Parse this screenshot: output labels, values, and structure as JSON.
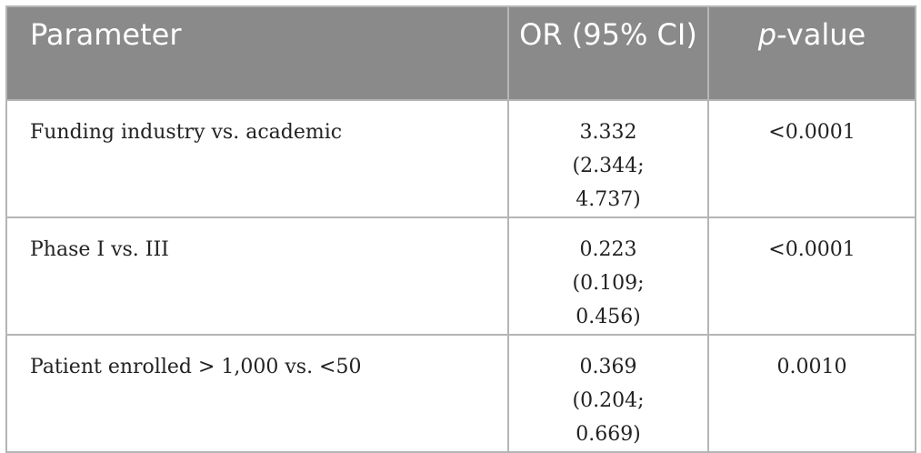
{
  "table": {
    "headers": {
      "parameter": "Parameter",
      "or": "OR (95% CI)",
      "p_italic": "p",
      "p_rest": "-value"
    },
    "rows": [
      {
        "parameter": "Funding industry vs. academic",
        "or": "3.332 (2.344; 4.737)",
        "p": "<0.0001"
      },
      {
        "parameter": "Phase I vs. III",
        "or": "0.223 (0.109; 0.456)",
        "p": "<0.0001"
      },
      {
        "parameter": "Patient enrolled > 1,000 vs. <50",
        "or": "0.369 (0.204; 0.669)",
        "p": "0.0010"
      }
    ]
  }
}
